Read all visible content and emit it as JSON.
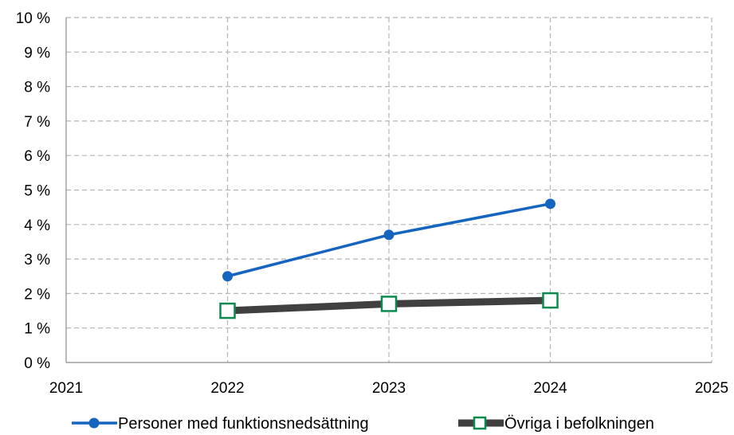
{
  "chart_data": {
    "type": "line",
    "x": [
      2022,
      2023,
      2024
    ],
    "xlim": [
      2021,
      2025
    ],
    "xticks": [
      "2021",
      "2022",
      "2023",
      "2024",
      "2025"
    ],
    "ylim": [
      0,
      10
    ],
    "yticks": [
      "0 %",
      "1 %",
      "2 %",
      "3 %",
      "4 %",
      "5 %",
      "6 %",
      "7 %",
      "8 %",
      "9 %",
      "10 %"
    ],
    "grid": true,
    "legend_position": "bottom",
    "series": [
      {
        "name": "Personer med funktionsnedsättning",
        "values": [
          2.5,
          3.7,
          4.6
        ],
        "color": "#1565c0",
        "marker": "circle"
      },
      {
        "name": "Övriga i befolkningen",
        "values": [
          1.5,
          1.7,
          1.8
        ],
        "color": "#404040",
        "marker": "square",
        "marker_color": "#0f8a4f"
      }
    ]
  }
}
